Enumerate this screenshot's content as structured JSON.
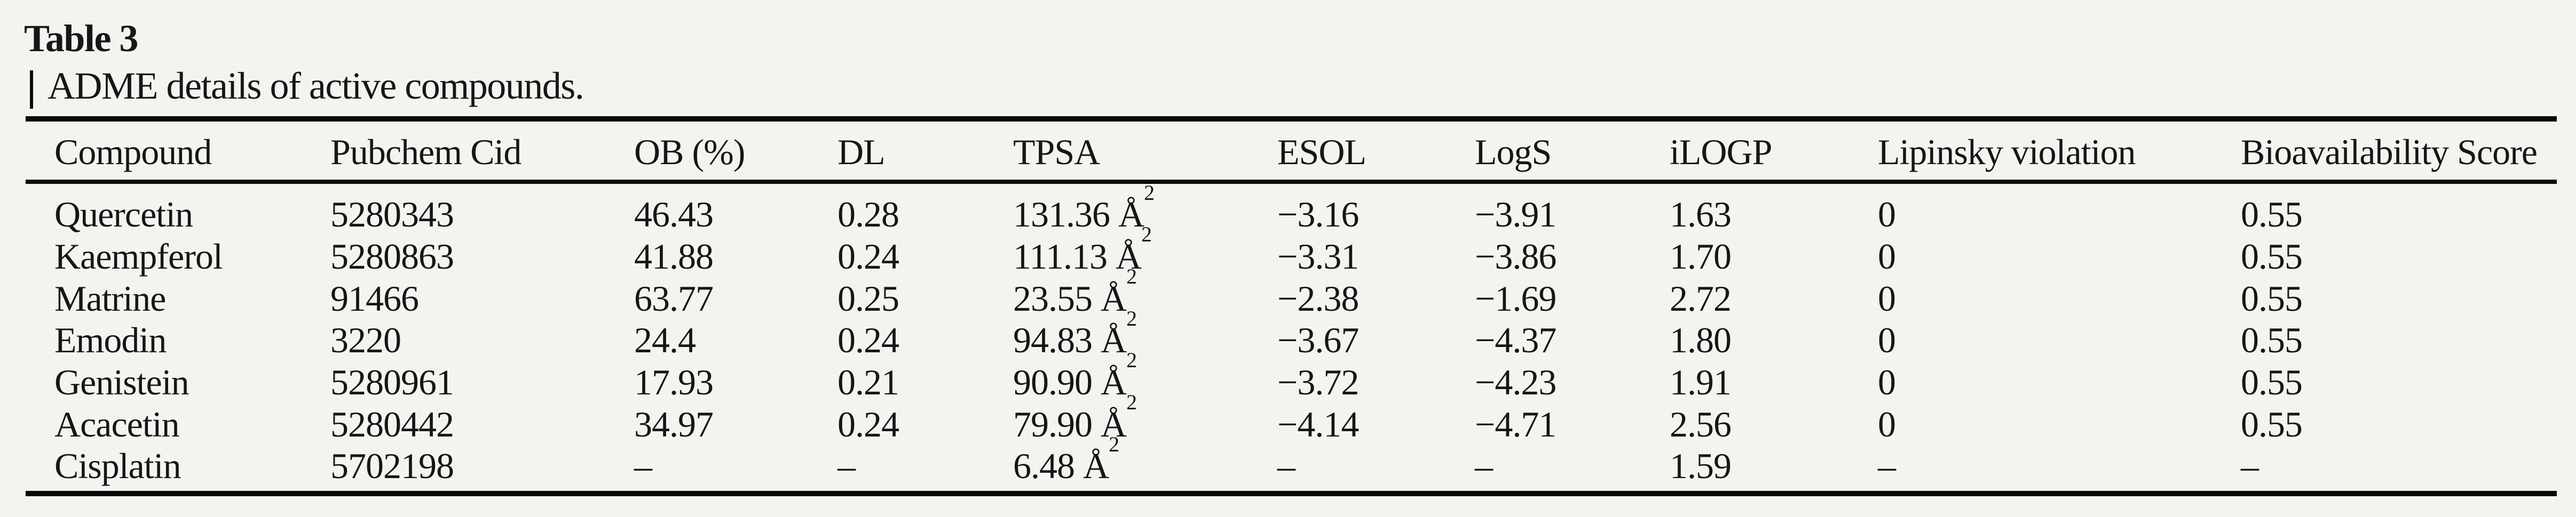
{
  "doc": {
    "title": "Table 3",
    "caption": "ADME details of active compounds."
  },
  "table": {
    "columns": [
      "Compound",
      "Pubchem Cid",
      "OB (%)",
      "DL",
      "TPSA",
      "ESOL",
      "LogS",
      "iLOGP",
      "Lipinsky violation",
      "Bioavailability Score"
    ],
    "rows": [
      {
        "compound": "Quercetin",
        "pubchem_cid": "5280343",
        "ob": "46.43",
        "dl": "0.28",
        "tpsa": "131.36 Å",
        "tpsa_sup": "2",
        "esol": "−3.16",
        "logs": "−3.91",
        "ilogp": "1.63",
        "lipinsky_violation": "0",
        "bioavailability_score": "0.55"
      },
      {
        "compound": "Kaempferol",
        "pubchem_cid": "5280863",
        "ob": "41.88",
        "dl": "0.24",
        "tpsa": "111.13 Å",
        "tpsa_sup": "2",
        "esol": "−3.31",
        "logs": "−3.86",
        "ilogp": "1.70",
        "lipinsky_violation": "0",
        "bioavailability_score": "0.55"
      },
      {
        "compound": "Matrine",
        "pubchem_cid": "91466",
        "ob": "63.77",
        "dl": "0.25",
        "tpsa": "23.55 Å",
        "tpsa_sup": "2",
        "esol": "−2.38",
        "logs": "−1.69",
        "ilogp": "2.72",
        "lipinsky_violation": "0",
        "bioavailability_score": "0.55"
      },
      {
        "compound": "Emodin",
        "pubchem_cid": "3220",
        "ob": "24.4",
        "dl": "0.24",
        "tpsa": "94.83 Å",
        "tpsa_sup": "2",
        "esol": "−3.67",
        "logs": "−4.37",
        "ilogp": "1.80",
        "lipinsky_violation": "0",
        "bioavailability_score": "0.55"
      },
      {
        "compound": "Genistein",
        "pubchem_cid": "5280961",
        "ob": "17.93",
        "dl": "0.21",
        "tpsa": "90.90 Å",
        "tpsa_sup": "2",
        "esol": "−3.72",
        "logs": "−4.23",
        "ilogp": "1.91",
        "lipinsky_violation": "0",
        "bioavailability_score": "0.55"
      },
      {
        "compound": "Acacetin",
        "pubchem_cid": "5280442",
        "ob": "34.97",
        "dl": "0.24",
        "tpsa": "79.90 Å",
        "tpsa_sup": "2",
        "esol": "−4.14",
        "logs": "−4.71",
        "ilogp": "2.56",
        "lipinsky_violation": "0",
        "bioavailability_score": "0.55"
      },
      {
        "compound": "Cisplatin",
        "pubchem_cid": "5702198",
        "ob": "–",
        "dl": "–",
        "tpsa": "6.48 Å",
        "tpsa_sup": "2",
        "esol": "–",
        "logs": "–",
        "ilogp": "1.59",
        "lipinsky_violation": "–",
        "bioavailability_score": "–"
      }
    ]
  }
}
